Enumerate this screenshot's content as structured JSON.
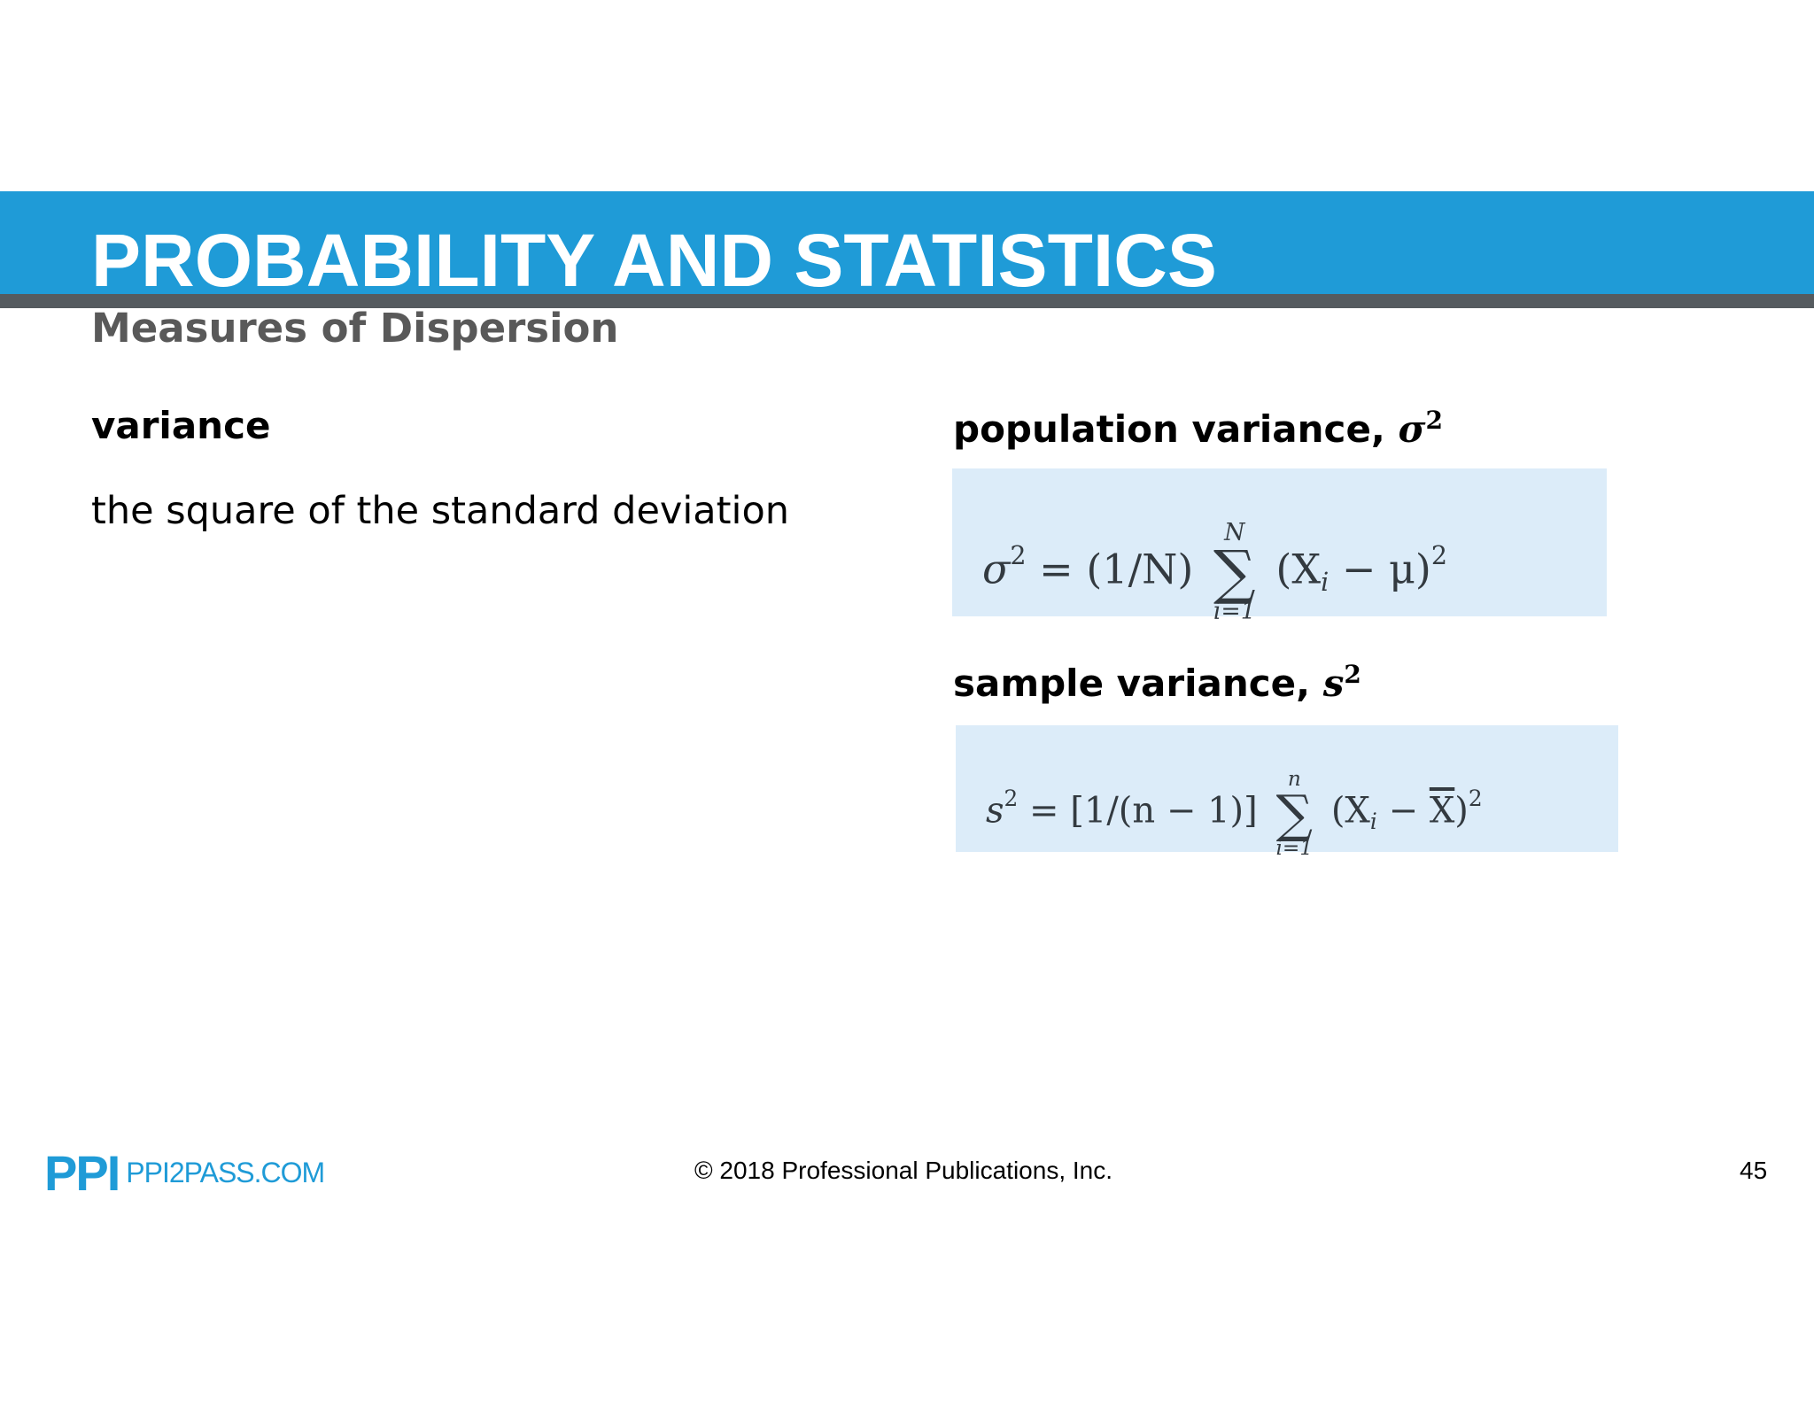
{
  "header": {
    "title": "PROBABILITY AND STATISTICS",
    "subtitle": "Measures of Dispersion"
  },
  "left": {
    "term": "variance",
    "definition": "the square of the standard deviation"
  },
  "population": {
    "heading": "population variance,",
    "symbol": "σ",
    "symbol_exp": "2",
    "formula": {
      "lhs": "σ",
      "lhs_exp": "2",
      "equals": " = ",
      "factor": "(1/N)",
      "sum_upper": "N",
      "sum_lower": "i=1",
      "sum_sign": "∑",
      "term_open": "(X",
      "term_sub": "i",
      "term_rest": " − μ)",
      "term_exp": "2"
    }
  },
  "sample": {
    "heading": "sample variance,",
    "symbol": "s",
    "symbol_exp": "2",
    "formula": {
      "lhs": "s",
      "lhs_exp": "2",
      "equals": " = ",
      "factor": "[1/(n − 1)]",
      "sum_upper": "n",
      "sum_lower": "i=1",
      "sum_sign": "∑",
      "term_open": "(X",
      "term_sub": "i",
      "term_minus": " − ",
      "term_bar": "X",
      "term_close": ")",
      "term_exp": "2"
    }
  },
  "footer": {
    "logo_mark": "PPI",
    "logo_site": "PPI2PASS.COM",
    "copyright": "© 2018 Professional Publications, Inc.",
    "page_number": "45"
  },
  "colors": {
    "header_band": "#1f9bd7",
    "header_rule": "#555b5f",
    "formula_box": "#dcecf9",
    "brand": "#1f9bd7"
  }
}
